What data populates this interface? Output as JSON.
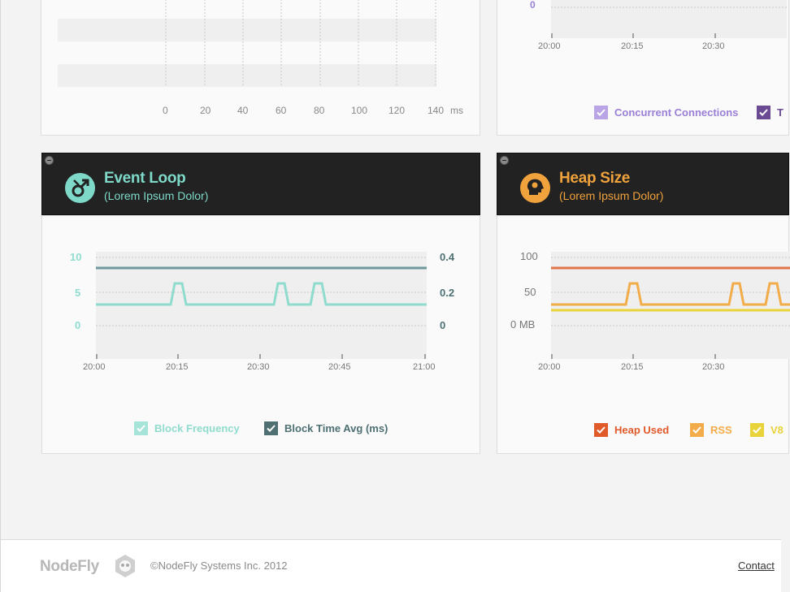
{
  "top_left_panel": {
    "x_axis_ticks": [
      "0",
      "20",
      "40",
      "60",
      "80",
      "100",
      "120",
      "140"
    ],
    "x_axis_unit": "ms"
  },
  "top_right_panel": {
    "y_tick": "0",
    "x_axis_ticks": [
      "20:00",
      "20:15",
      "20:30"
    ],
    "legend": [
      {
        "label": "Concurrent Connections",
        "color": "#9b7fd6"
      },
      {
        "label": "T",
        "color": "#6a4a93"
      }
    ]
  },
  "event_loop": {
    "title": "Event Loop",
    "subtitle": "(Lorem Ipsum Dolor)",
    "accent": "#7ed9c9",
    "icon": "gender-symbol-icon",
    "y_left_ticks": [
      "10",
      "5",
      "0"
    ],
    "y_right_ticks": [
      "0.4",
      "0.2",
      "0"
    ],
    "x_axis_ticks": [
      "20:00",
      "20:15",
      "20:30",
      "20:45",
      "21:00"
    ],
    "legend": [
      {
        "label": "Block Frequency",
        "color": "#8fdccf"
      },
      {
        "label": "Block Time Avg (ms)",
        "color": "#4e7073"
      }
    ]
  },
  "heap_size": {
    "title": "Heap Size",
    "subtitle": "(Lorem Ipsum Dolor)",
    "accent": "#f0a23c",
    "icon": "head-profile-icon",
    "y_ticks": [
      "100",
      "50",
      "0 MB"
    ],
    "x_axis_ticks": [
      "20:00",
      "20:15",
      "20:30"
    ],
    "legend": [
      {
        "label": "Heap Used",
        "color": "#e05a2a"
      },
      {
        "label": "RSS",
        "color": "#f2ac49"
      },
      {
        "label": "V8",
        "color": "#e8d33a"
      }
    ]
  },
  "footer": {
    "logo": "NodeFly",
    "copyright": "©NodeFly Systems Inc. 2012",
    "contact": "Contact"
  }
}
